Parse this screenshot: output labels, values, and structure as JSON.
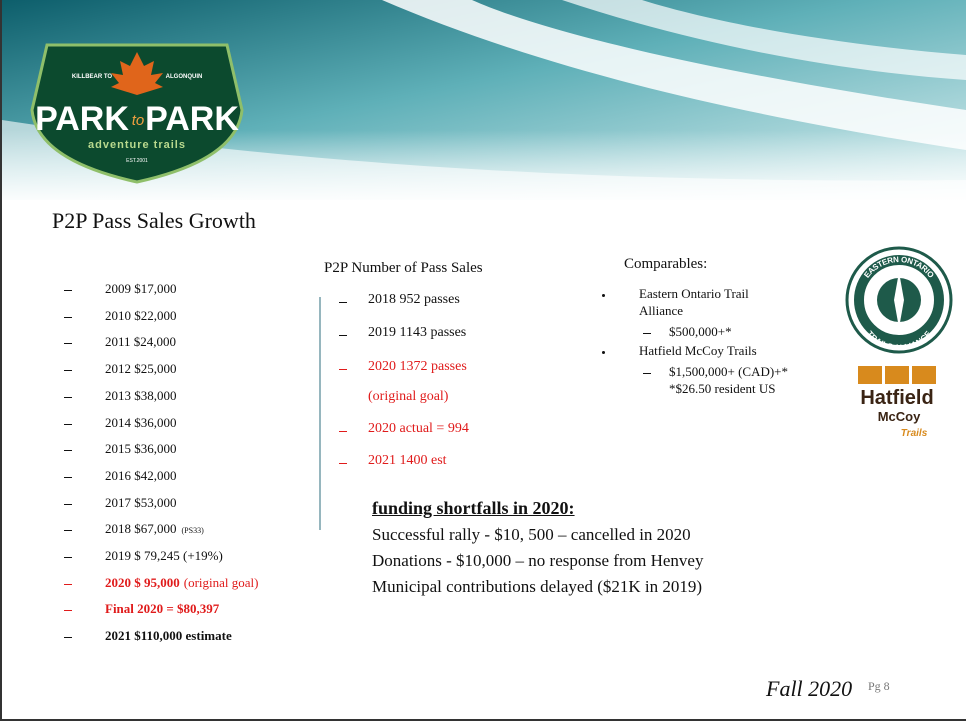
{
  "logo": {
    "top_left": "KILLBEAR TO",
    "top_right": "ALGONQUIN",
    "name_left": "PARK",
    "name_mid": "to",
    "name_right": "PARK",
    "tagline": "adventure trails",
    "est": "EST.2001"
  },
  "title": "P2P Pass Sales Growth",
  "revenue": [
    [
      "2009 $17,000"
    ],
    [
      "2010  $22,000"
    ],
    [
      "2011  $24,000"
    ],
    [
      "2012 $25,000"
    ],
    [
      "2013 $38,000"
    ],
    [
      "2014 $36,000"
    ],
    [
      "2015 $36,000"
    ],
    [
      "2016 $42,000"
    ],
    [
      "2017  $53,000"
    ],
    [
      "2018 $67,000",
      "(PS33)"
    ],
    [
      "2019 $ 79,245 (+19%)"
    ],
    [
      "2020 $ 95,000",
      "(original goal)"
    ],
    [
      "Final 2020 = $80,397"
    ],
    [
      "2021  $110,000 estimate"
    ]
  ],
  "pass_sales": {
    "heading": "P2P Number of Pass Sales",
    "items": [
      "2018  952 passes",
      "2019  1143 passes",
      "2020 1372 passes",
      "(original goal)",
      "2020 actual = 994",
      "2021 1400 est"
    ]
  },
  "comparables": {
    "heading": "Comparables:",
    "items": [
      {
        "name": [
          "Eastern Ontario Trail",
          "Alliance"
        ],
        "details": [
          "$500,000+*"
        ]
      },
      {
        "name": [
          "Hatfield McCoy Trails"
        ],
        "details": [
          "$1,500,000+ (CAD)+*",
          "*$26.50 resident US"
        ]
      }
    ]
  },
  "eota_logo": {
    "top": "EASTERN ONTARIO",
    "bottom": "TRAILS ALLIANCE"
  },
  "hatfield_logo": {
    "line1": "Hatfield",
    "line2": "McCoy",
    "line3": "Trails"
  },
  "funding": {
    "heading": "funding shortfalls in 2020:",
    "lines": [
      "Successful rally - $10, 500 – cancelled in 2020",
      "Donations - $10,000 – no response from Henvey",
      "Municipal contributions delayed ($21K in 2019)"
    ]
  },
  "footer": {
    "season": "Fall 2020",
    "page": "Pg 8"
  }
}
